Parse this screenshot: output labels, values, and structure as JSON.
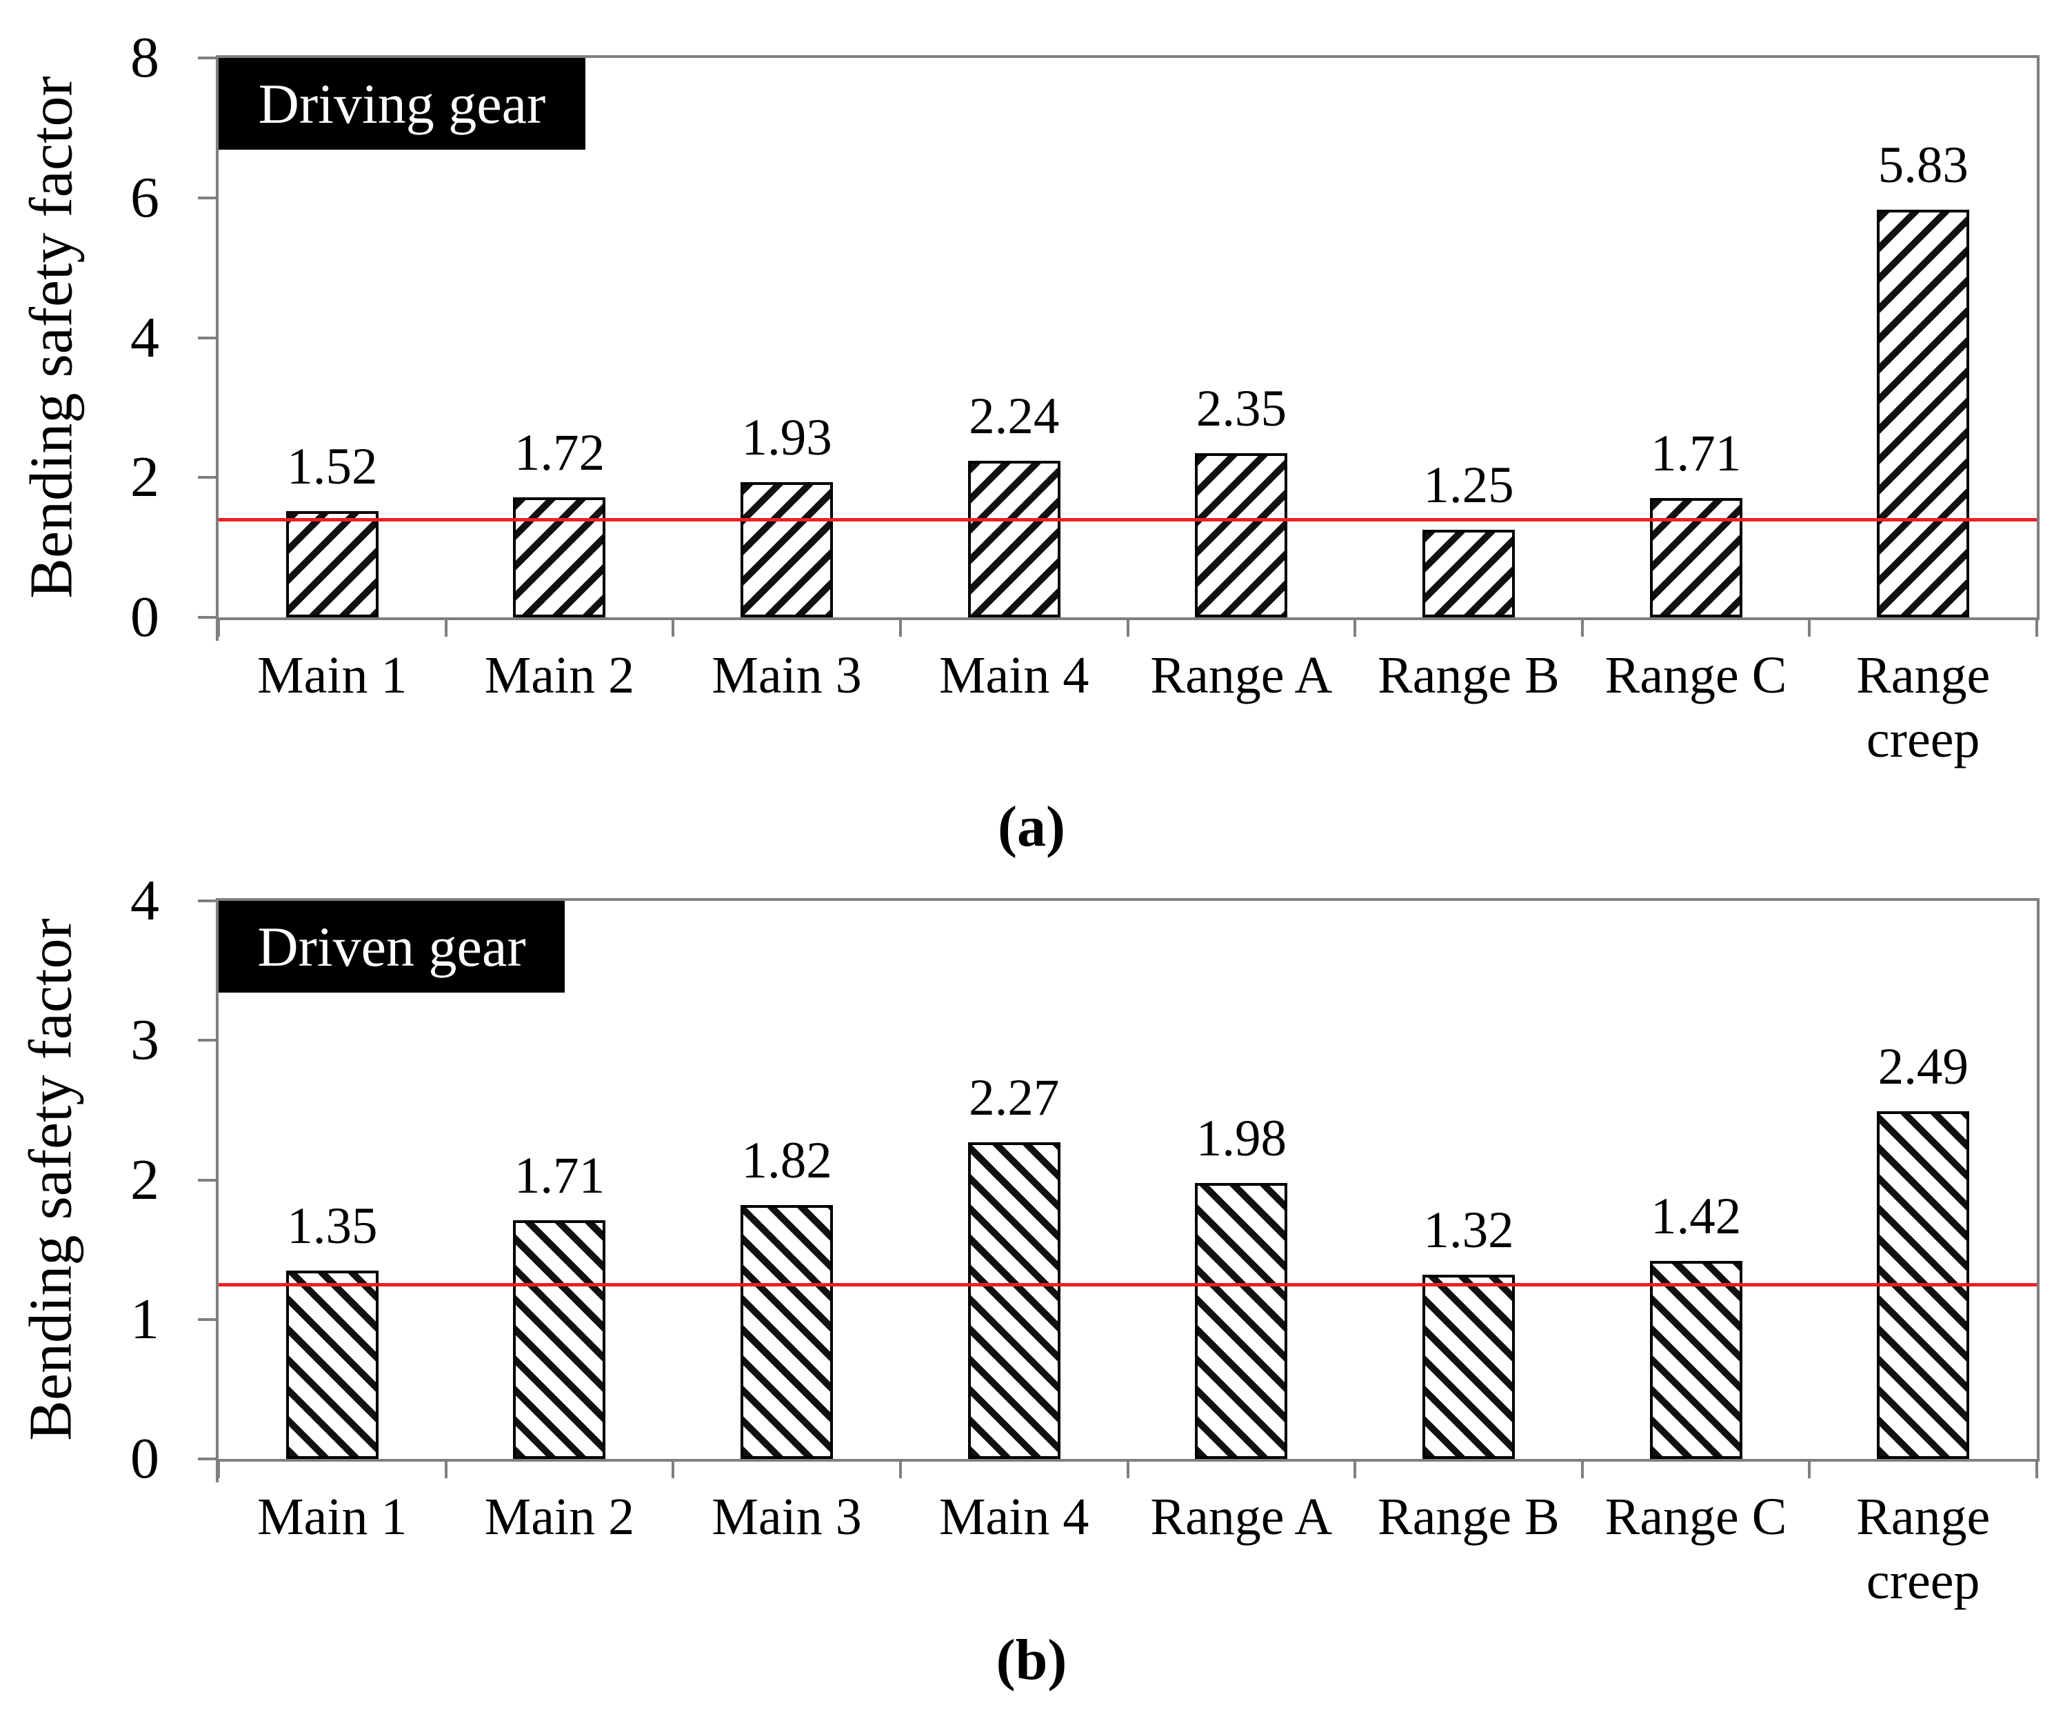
{
  "figure": {
    "description": "Two-panel bar chart of bending safety factors for driving and driven gears"
  },
  "colors": {
    "reference_line": "#ed1f24",
    "axis": "#7f7f7f",
    "bar_hatch": "#111111",
    "bar_fill": "#ffffff",
    "label_box_bg": "#000000",
    "label_box_text": "#ffffff"
  },
  "chart_data": [
    {
      "type": "bar",
      "panel": "a",
      "title_box": "Driving gear",
      "caption": "(a)",
      "ylabel": "Bending safety factor",
      "categories": [
        "Main 1",
        "Main 2",
        "Main 3",
        "Main 4",
        "Range A",
        "Range B",
        "Range C",
        "Range\ncreep"
      ],
      "values": [
        1.52,
        1.72,
        1.93,
        2.24,
        2.35,
        1.25,
        1.71,
        5.83
      ],
      "data_labels": [
        "1.52",
        "1.72",
        "1.93",
        "2.24",
        "2.35",
        "1.25",
        "1.71",
        "5.83"
      ],
      "ylim": [
        0,
        8
      ],
      "yticks": [
        0,
        2,
        4,
        6,
        8
      ],
      "reference_line": 1.4,
      "hatch_direction": "/",
      "grid": false,
      "legend": false
    },
    {
      "type": "bar",
      "panel": "b",
      "title_box": "Driven gear",
      "caption": "(b)",
      "ylabel": "Bending safety factor",
      "categories": [
        "Main 1",
        "Main 2",
        "Main 3",
        "Main 4",
        "Range A",
        "Range B",
        "Range C",
        "Range\ncreep"
      ],
      "values": [
        1.35,
        1.71,
        1.82,
        2.27,
        1.98,
        1.32,
        1.42,
        2.49
      ],
      "data_labels": [
        "1.35",
        "1.71",
        "1.82",
        "2.27",
        "1.98",
        "1.32",
        "1.42",
        "2.49"
      ],
      "ylim": [
        0,
        4
      ],
      "yticks": [
        0,
        1,
        2,
        3,
        4
      ],
      "reference_line": 1.25,
      "hatch_direction": "\\",
      "grid": false,
      "legend": false
    }
  ]
}
